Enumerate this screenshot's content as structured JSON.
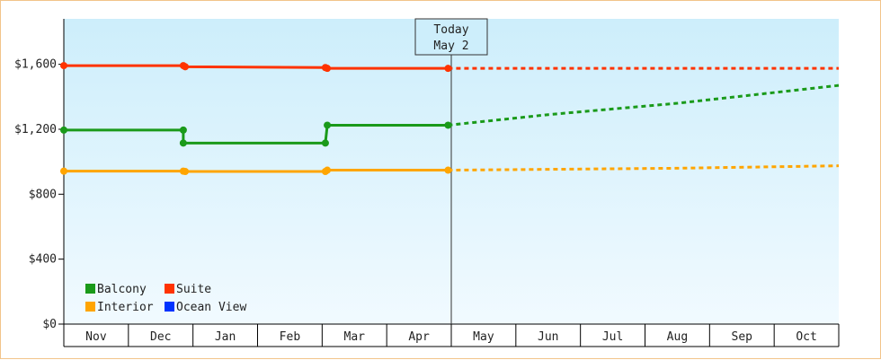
{
  "chart_data": {
    "type": "line",
    "title": "",
    "xlabel": "",
    "ylabel": "",
    "months": [
      "Nov",
      "Dec",
      "Jan",
      "Feb",
      "Mar",
      "Apr",
      "May",
      "Jun",
      "Jul",
      "Aug",
      "Sep",
      "Oct"
    ],
    "y_ticks": [
      "$0",
      "$400",
      "$800",
      "$1,200",
      "$1,600"
    ],
    "y_tick_values": [
      0,
      400,
      800,
      1200,
      1600
    ],
    "ylim": [
      0,
      1880
    ],
    "today": {
      "line1": "Today",
      "line2": "May 2",
      "x": 6.0
    },
    "grid": false,
    "legend_position": "bottom-left",
    "colors": {
      "Balcony": "#1a9a1a",
      "Suite": "#ff3300",
      "Interior": "#ffa500",
      "Ocean View": "#0033ff",
      "background_top": "#cdeefb",
      "background_bottom": "#f1faff",
      "border": "#f2c48a"
    },
    "legend": [
      "Balcony",
      "Suite",
      "Interior",
      "Ocean View"
    ],
    "series": [
      {
        "name": "Suite",
        "points": [
          [
            0.0,
            1592
          ],
          [
            1.85,
            1592
          ],
          [
            1.88,
            1585
          ],
          [
            4.05,
            1580
          ],
          [
            4.08,
            1575
          ],
          [
            5.95,
            1575
          ]
        ],
        "markers": [
          0.0,
          1.85,
          1.88,
          4.05,
          4.08,
          5.95
        ],
        "forecast": [
          [
            5.95,
            1575
          ],
          [
            12.0,
            1575
          ]
        ]
      },
      {
        "name": "Balcony",
        "points": [
          [
            0.0,
            1195
          ],
          [
            1.85,
            1195
          ],
          [
            1.85,
            1115
          ],
          [
            4.05,
            1115
          ],
          [
            4.08,
            1225
          ],
          [
            5.95,
            1225
          ]
        ],
        "markers": [
          0.0,
          1.85,
          1.85,
          4.05,
          4.08,
          5.95
        ],
        "marker_values": [
          1195,
          1195,
          1115,
          1115,
          1225,
          1225
        ],
        "forecast": [
          [
            5.95,
            1225
          ],
          [
            7.5,
            1290
          ],
          [
            9.5,
            1360
          ],
          [
            12.0,
            1470
          ]
        ]
      },
      {
        "name": "Interior",
        "points": [
          [
            0.0,
            942
          ],
          [
            1.85,
            942
          ],
          [
            1.88,
            940
          ],
          [
            4.05,
            940
          ],
          [
            4.08,
            948
          ],
          [
            5.95,
            948
          ]
        ],
        "markers": [
          0.0,
          1.85,
          1.88,
          4.05,
          4.08,
          5.95
        ],
        "forecast": [
          [
            5.95,
            948
          ],
          [
            9.5,
            960
          ],
          [
            12.0,
            975
          ]
        ]
      }
    ]
  }
}
